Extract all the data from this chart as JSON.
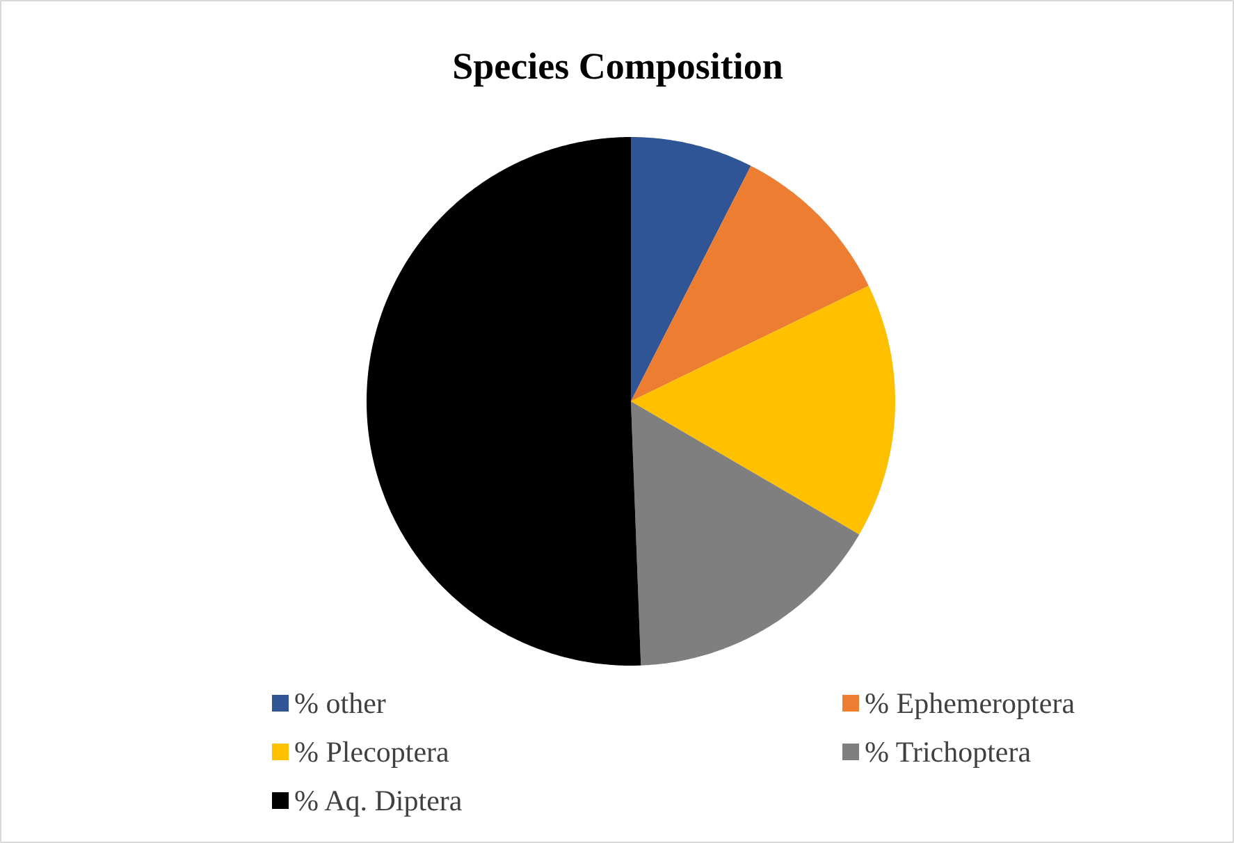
{
  "chart_data": {
    "type": "pie",
    "title": "Species Composition",
    "categories": [
      "% other",
      "% Ephemeroptera",
      "% Plecoptera",
      "% Trichoptera",
      "% Aq. Diptera"
    ],
    "values": [
      7.5,
      10.3,
      15.6,
      16.0,
      50.6
    ],
    "colors": [
      "#2f5597",
      "#ed7d31",
      "#ffc000",
      "#7f7f7f",
      "#000000"
    ],
    "legend": "bottom"
  }
}
